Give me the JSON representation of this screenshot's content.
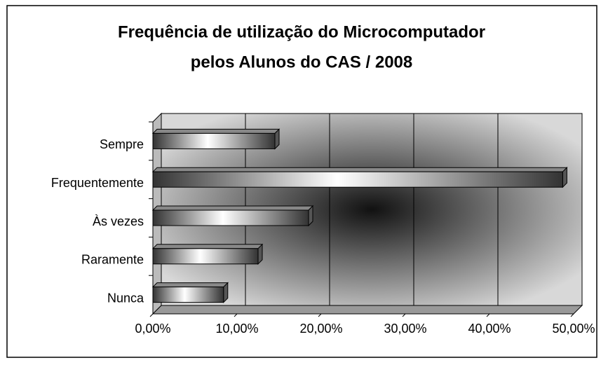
{
  "chart_data": {
    "type": "bar",
    "orientation": "horizontal",
    "title": "Frequência de utilização do Microcomputador",
    "subtitle": "pelos Alunos do CAS / 2008",
    "categories": [
      "Sempre",
      "Frequentemente",
      "Às vezes",
      "Raramente",
      "Nunca"
    ],
    "values": [
      14.5,
      48.7,
      18.5,
      12.5,
      8.4
    ],
    "color": "#333333",
    "xlim": [
      0,
      50
    ],
    "xticks": [
      {
        "value": 0,
        "label": "0,00%"
      },
      {
        "value": 10,
        "label": "10,00%"
      },
      {
        "value": 20,
        "label": "20,00%"
      },
      {
        "value": 30,
        "label": "30,00%"
      },
      {
        "value": 40,
        "label": "40,00%"
      },
      {
        "value": 50,
        "label": "50,00%"
      }
    ],
    "grid": true
  }
}
